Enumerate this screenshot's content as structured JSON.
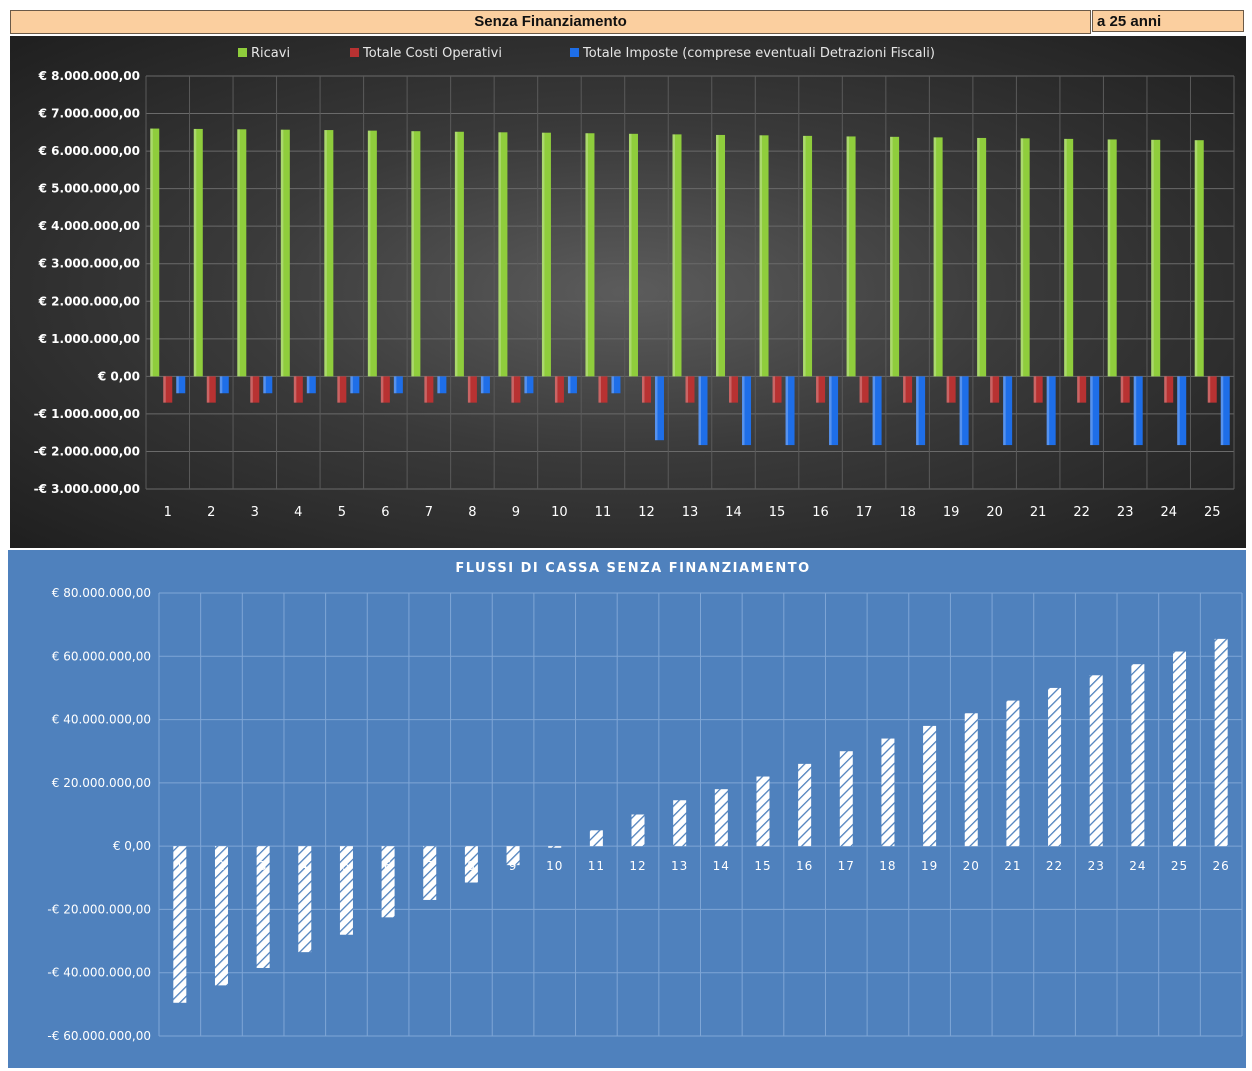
{
  "header": {
    "title": "Senza Finanziamento",
    "side": "a 25 anni"
  },
  "colors": {
    "ricavi": "#8fcd3c",
    "costi": "#b83232",
    "imposte": "#1e6ee8",
    "top_background": "#333333",
    "bottom_background": "#4f81bd",
    "header_fill": "#fbcf9f"
  },
  "chart_data": [
    {
      "type": "bar",
      "title": "",
      "legend_position": "top",
      "categories": [
        "1",
        "2",
        "3",
        "4",
        "5",
        "6",
        "7",
        "8",
        "9",
        "10",
        "11",
        "12",
        "13",
        "14",
        "15",
        "16",
        "17",
        "18",
        "19",
        "20",
        "21",
        "22",
        "23",
        "24",
        "25"
      ],
      "series": [
        {
          "name": "Ricavi",
          "values": [
            6600000,
            6590000,
            6580000,
            6570000,
            6560000,
            6545000,
            6530000,
            6515000,
            6500000,
            6490000,
            6475000,
            6460000,
            6445000,
            6430000,
            6420000,
            6405000,
            6390000,
            6380000,
            6365000,
            6350000,
            6340000,
            6325000,
            6310000,
            6300000,
            6290000
          ]
        },
        {
          "name": "Totale Costi Operativi",
          "values": [
            -700000,
            -700000,
            -700000,
            -700000,
            -700000,
            -700000,
            -700000,
            -700000,
            -700000,
            -700000,
            -700000,
            -700000,
            -700000,
            -700000,
            -700000,
            -700000,
            -700000,
            -700000,
            -700000,
            -700000,
            -700000,
            -700000,
            -700000,
            -700000,
            -700000
          ]
        },
        {
          "name": "Totale Imposte (comprese eventuali Detrazioni Fiscali)",
          "values": [
            -450000,
            -450000,
            -450000,
            -450000,
            -450000,
            -450000,
            -450000,
            -450000,
            -450000,
            -450000,
            -450000,
            -1700000,
            -1830000,
            -1830000,
            -1830000,
            -1830000,
            -1830000,
            -1830000,
            -1830000,
            -1830000,
            -1830000,
            -1830000,
            -1830000,
            -1830000,
            -1830000
          ]
        }
      ],
      "ylim": [
        -3000000,
        8000000
      ],
      "yticks": [
        8000000,
        7000000,
        6000000,
        5000000,
        4000000,
        3000000,
        2000000,
        1000000,
        0,
        -1000000,
        -2000000,
        -3000000
      ],
      "ytick_labels": [
        "€ 8.000.000,00",
        "€ 7.000.000,00",
        "€ 6.000.000,00",
        "€ 5.000.000,00",
        "€ 4.000.000,00",
        "€ 3.000.000,00",
        "€ 2.000.000,00",
        "€ 1.000.000,00",
        "€ 0,00",
        "-€ 1.000.000,00",
        "-€ 2.000.000,00",
        "-€ 3.000.000,00"
      ],
      "grid": true
    },
    {
      "type": "bar",
      "title": "FLUSSI DI CASSA SENZA FINANZIAMENTO",
      "categories": [
        "1",
        "2",
        "3",
        "4",
        "5",
        "6",
        "7",
        "8",
        "9",
        "10",
        "11",
        "12",
        "13",
        "14",
        "15",
        "16",
        "17",
        "18",
        "19",
        "20",
        "21",
        "22",
        "23",
        "24",
        "25",
        "26"
      ],
      "series": [
        {
          "values": [
            -49500000,
            -44000000,
            -38500000,
            -33500000,
            -28000000,
            -22500000,
            -17000000,
            -11500000,
            -6000000,
            -500000,
            5000000,
            10000000,
            14500000,
            18000000,
            22000000,
            26000000,
            30000000,
            34000000,
            38000000,
            42000000,
            46000000,
            50000000,
            54000000,
            57500000,
            61500000,
            65500000
          ]
        }
      ],
      "ylim": [
        -60000000,
        80000000
      ],
      "yticks": [
        80000000,
        60000000,
        40000000,
        20000000,
        0,
        -20000000,
        -40000000,
        -60000000
      ],
      "ytick_labels": [
        "€ 80.000.000,00",
        "€ 60.000.000,00",
        "€ 40.000.000,00",
        "€ 20.000.000,00",
        "€ 0,00",
        "-€ 20.000.000,00",
        "-€ 40.000.000,00",
        "-€ 60.000.000,00"
      ],
      "grid": true,
      "bar_pattern": "white diagonal hatch"
    }
  ]
}
